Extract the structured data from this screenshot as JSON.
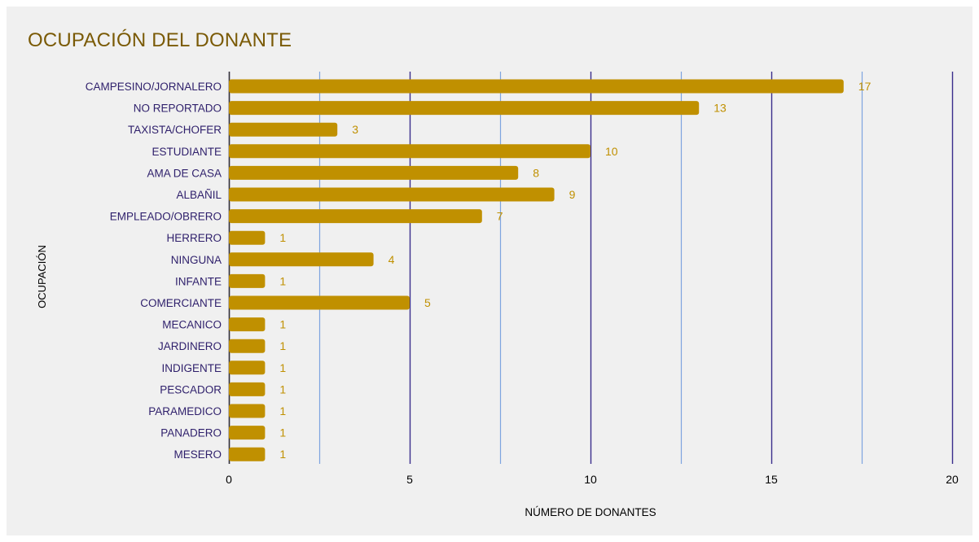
{
  "colors": {
    "background": "#f0f0f0",
    "bar": "#c09000",
    "value_label": "#c09000",
    "category_label": "#2e1f6b",
    "title": "#7a5a06",
    "major_grid": "#3a2e8c",
    "minor_grid": "#7ea4e0",
    "axis_text": "#000000"
  },
  "chart_data": {
    "type": "bar",
    "orientation": "horizontal",
    "title": "OCUPACIÓN DEL DONANTE",
    "xlabel": "NÚMERO DE DONANTES",
    "ylabel": "OCUPACIÓN",
    "xlim": [
      0,
      20
    ],
    "xticks": [
      "0",
      "5",
      "10",
      "15",
      "20"
    ],
    "grid": true,
    "legend": "none",
    "categories": [
      "CAMPESINO/JORNALERO",
      "NO REPORTADO",
      "TAXISTA/CHOFER",
      "ESTUDIANTE",
      "AMA DE CASA",
      "ALBAÑIL",
      "EMPLEADO/OBRERO",
      "HERRERO",
      "NINGUNA",
      "INFANTE",
      "COMERCIANTE",
      "MECANICO",
      "JARDINERO",
      "INDIGENTE",
      "PESCADOR",
      "PARAMEDICO",
      "PANADERO",
      "MESERO"
    ],
    "values": [
      17,
      13,
      3,
      10,
      8,
      9,
      7,
      1,
      4,
      1,
      5,
      1,
      1,
      1,
      1,
      1,
      1,
      1
    ]
  }
}
